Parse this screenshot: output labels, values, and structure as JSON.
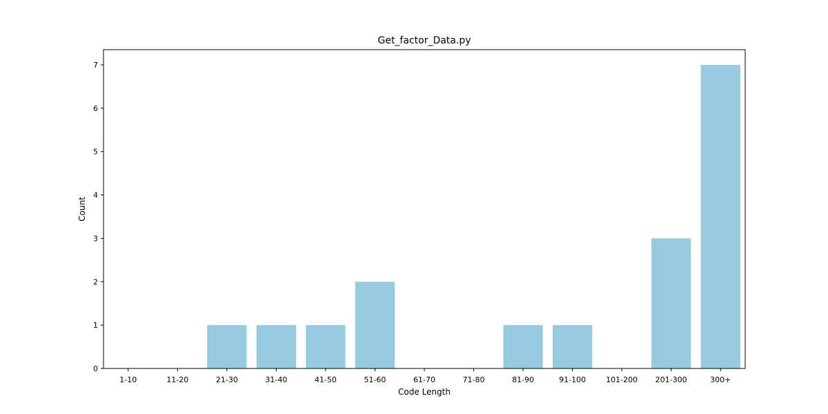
{
  "chart_data": {
    "type": "bar",
    "title": "Get_factor_Data.py",
    "xlabel": "Code Length",
    "ylabel": "Count",
    "categories": [
      "1-10",
      "11-20",
      "21-30",
      "31-40",
      "41-50",
      "51-60",
      "61-70",
      "71-80",
      "81-90",
      "91-100",
      "101-200",
      "201-300",
      "300+"
    ],
    "values": [
      0,
      0,
      1,
      1,
      1,
      2,
      0,
      0,
      1,
      1,
      0,
      3,
      7
    ],
    "ylim": [
      0,
      7.35
    ],
    "yticks": [
      0,
      1,
      2,
      3,
      4,
      5,
      6,
      7
    ],
    "bar_color": "#96cadf",
    "grid": false,
    "legend": "none"
  }
}
